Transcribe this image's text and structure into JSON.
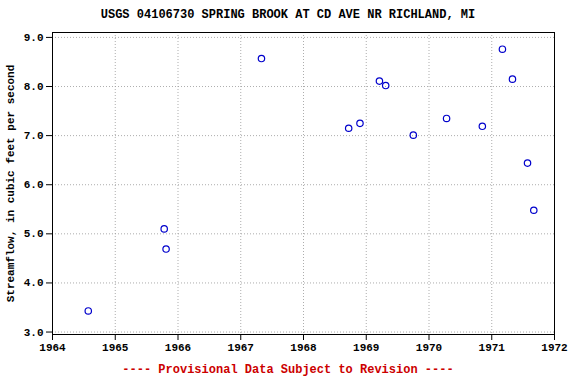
{
  "chart_data": {
    "type": "scatter",
    "title": "USGS 04106730 SPRING BROOK AT CD AVE NR RICHLAND, MI",
    "y_label": "Streamflow, in cubic feet per second",
    "caption": "---- Provisional Data Subject to Revision ----",
    "x": [
      1964.57,
      1965.78,
      1965.81,
      1967.33,
      1968.72,
      1968.9,
      1969.21,
      1969.31,
      1969.75,
      1970.28,
      1970.85,
      1971.17,
      1971.33,
      1971.57,
      1971.67
    ],
    "values": [
      3.43,
      5.1,
      4.69,
      8.57,
      7.15,
      7.25,
      8.11,
      8.02,
      7.01,
      7.35,
      7.19,
      8.76,
      8.15,
      6.44,
      5.48
    ],
    "color": "#0000cc",
    "marker": "circle",
    "xlim": [
      1964,
      1972
    ],
    "xticks": [
      1964,
      1965,
      1966,
      1967,
      1968,
      1969,
      1970,
      1971,
      1972
    ],
    "ylim": [
      2.95,
      9.1
    ],
    "yticks": [
      {
        "value": 3,
        "label": "3.0"
      },
      {
        "value": 4,
        "label": "4.0"
      },
      {
        "value": 5,
        "label": "5.0"
      },
      {
        "value": 6,
        "label": "6.0"
      },
      {
        "value": 7,
        "label": "7.0"
      },
      {
        "value": 8,
        "label": "8.0"
      },
      {
        "value": 9,
        "label": "9.0"
      }
    ],
    "grid": true
  }
}
